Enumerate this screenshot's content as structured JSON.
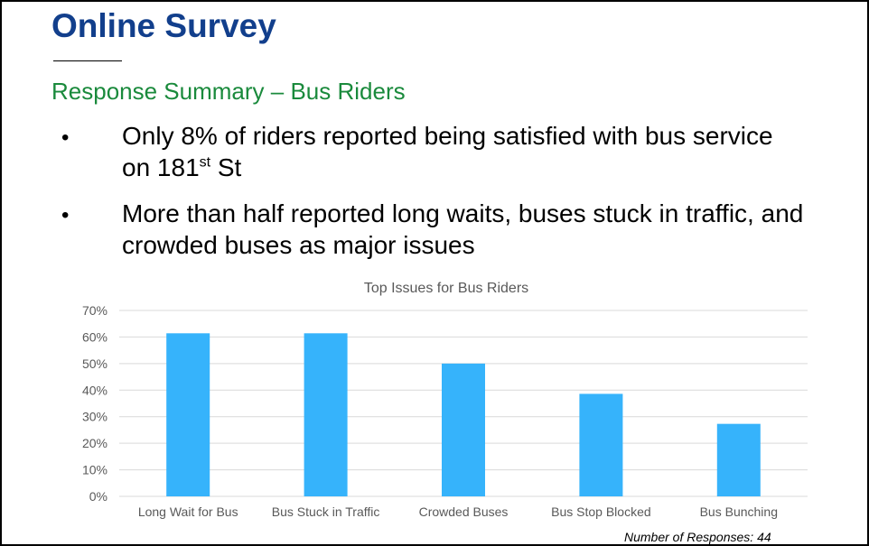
{
  "slide": {
    "title": "Online Survey",
    "subtitle": "Response Summary – Bus Riders",
    "bullets": [
      {
        "dot": "•",
        "line1_before": "Only 8% of riders reported being satisfied with bus service",
        "line2_before": "on 181",
        "sup": "st",
        "line2_after": " St"
      },
      {
        "dot": "•",
        "line1": "More than half reported long waits, buses stuck in traffic, and",
        "line2": "crowded buses as major issues"
      }
    ],
    "footnote": "Number of Responses: 44"
  },
  "colors": {
    "bar": "#36b3fb",
    "grid": "#d9d9d9",
    "axis_text": "#595959"
  },
  "chart_data": {
    "type": "bar",
    "title": "Top Issues for Bus Riders",
    "categories": [
      "Long Wait for Bus",
      "Bus Stuck in Traffic",
      "Crowded Buses",
      "Bus Stop Blocked",
      "Bus Bunching"
    ],
    "values": [
      61.4,
      61.4,
      50.0,
      38.6,
      27.3
    ],
    "unit": "%",
    "ylim": [
      0,
      70
    ],
    "yticks": [
      "0%",
      "10%",
      "20%",
      "30%",
      "40%",
      "50%",
      "60%",
      "70%"
    ],
    "grid": true,
    "legend": "none"
  }
}
